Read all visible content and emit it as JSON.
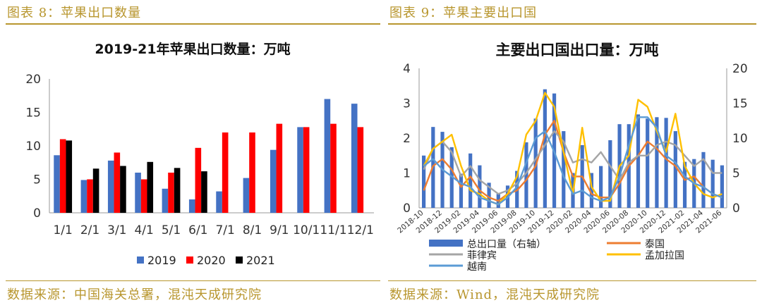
{
  "left": {
    "caption": "图表 8：苹果出口数量",
    "source": "数据来源：中国海关总署，混沌天成研究院",
    "chart_data": {
      "type": "bar",
      "title": "2019-21年苹果出口数量：万吨",
      "categories": [
        "1/1",
        "2/1",
        "3/1",
        "4/1",
        "5/1",
        "6/1",
        "7/1",
        "8/1",
        "9/1",
        "10/1",
        "11/1",
        "12/1"
      ],
      "ylim": [
        0,
        20
      ],
      "yticks": [
        0,
        5,
        10,
        15,
        20
      ],
      "legend_position": "bottom",
      "series": [
        {
          "name": "2019",
          "color": "#4472c4",
          "values": [
            8.6,
            4.9,
            7.8,
            6.0,
            3.6,
            2.0,
            3.2,
            5.2,
            9.4,
            12.8,
            17.0,
            16.3
          ]
        },
        {
          "name": "2020",
          "color": "#ff0000",
          "values": [
            11.0,
            5.0,
            9.0,
            5.0,
            6.0,
            9.7,
            12.0,
            12.0,
            13.3,
            12.8,
            13.3,
            12.8
          ]
        },
        {
          "name": "2021",
          "color": "#000000",
          "values": [
            10.8,
            6.6,
            7.0,
            7.6,
            6.7,
            6.2,
            null,
            null,
            null,
            null,
            null,
            null
          ]
        }
      ]
    }
  },
  "right": {
    "caption": "图表 9：苹果主要出口国",
    "source": "数据来源：Wind，混沌天成研究院",
    "chart_data": {
      "type": "bar+line",
      "title": "主要出口国出口量：万吨",
      "x": [
        "2018-10",
        "2018-11",
        "2018-12",
        "2019-01",
        "2019-02",
        "2019-03",
        "2019-04",
        "2019-05",
        "2019-06",
        "2019-07",
        "2019-08",
        "2019-09",
        "2019-10",
        "2019-11",
        "2019-12",
        "2020-01",
        "2020-02",
        "2020-03",
        "2020-04",
        "2020-05",
        "2020-06",
        "2020-07",
        "2020-08",
        "2020-09",
        "2020-10",
        "2020-11",
        "2020-12",
        "2021-01",
        "2021-02",
        "2021-03",
        "2021-04",
        "2021-05",
        "2021-06"
      ],
      "x_tick_labels": [
        "2018-10",
        "2018-12",
        "2019-02",
        "2019-04",
        "2019-06",
        "2019-08",
        "2019-10",
        "2019-12",
        "2020-02",
        "2020-04",
        "2020-06",
        "2020-08",
        "2020-10",
        "2020-12",
        "2021-02",
        "2021-04",
        "2021-06"
      ],
      "left_ylim": [
        0,
        4
      ],
      "left_yticks": [
        0,
        1,
        2,
        3,
        4
      ],
      "right_ylim": [
        0,
        20
      ],
      "right_yticks": [
        0,
        5,
        10,
        15,
        20
      ],
      "legend_position": "bottom",
      "bar_series": {
        "name": "总出口量（右轴）",
        "color": "#4472c4",
        "values": [
          7.5,
          11.6,
          10.9,
          8.7,
          4.9,
          7.8,
          6.1,
          3.6,
          2.0,
          3.2,
          5.3,
          9.4,
          12.8,
          17.0,
          16.4,
          11.0,
          5.0,
          9.0,
          5.0,
          6.0,
          9.7,
          12.0,
          12.0,
          13.4,
          12.8,
          13.0,
          12.9,
          11.0,
          6.6,
          7.0,
          8.0,
          6.9,
          6.1
        ]
      },
      "line_series": [
        {
          "name": "泰国",
          "color": "#ed7d31",
          "values": [
            0.5,
            1.2,
            1.4,
            1.1,
            0.6,
            0.9,
            0.5,
            0.3,
            0.2,
            0.4,
            0.5,
            0.8,
            1.2,
            2.1,
            2.5,
            1.6,
            0.9,
            0.9,
            0.4,
            0.3,
            0.3,
            0.7,
            1.2,
            1.5,
            1.9,
            1.7,
            1.4,
            1.2,
            0.8,
            0.9,
            0.6,
            0.4,
            0.3
          ]
        },
        {
          "name": "菲律宾",
          "color": "#a5a5a5",
          "values": [
            1.1,
            1.7,
            1.9,
            1.6,
            0.9,
            1.2,
            0.8,
            0.6,
            0.4,
            0.5,
            0.7,
            1.0,
            1.4,
            1.8,
            2.2,
            1.9,
            1.3,
            1.4,
            1.3,
            1.6,
            1.2,
            0.8,
            1.3,
            1.5,
            1.5,
            1.8,
            1.9,
            1.8,
            1.5,
            1.2,
            1.4,
            1.0,
            1.0
          ]
        },
        {
          "name": "孟加拉国",
          "color": "#ffc000",
          "values": [
            1.2,
            1.7,
            1.9,
            2.1,
            1.2,
            0.5,
            0.4,
            0.2,
            0.1,
            0.4,
            0.9,
            2.1,
            2.5,
            3.3,
            2.9,
            1.6,
            0.4,
            2.3,
            0.6,
            0.2,
            0.2,
            1.2,
            1.5,
            3.1,
            2.9,
            2.2,
            1.6,
            2.7,
            1.2,
            0.7,
            0.4,
            0.3,
            0.4
          ]
        },
        {
          "name": "越南",
          "color": "#5b9bd5",
          "values": [
            1.2,
            1.4,
            1.1,
            0.9,
            0.7,
            0.6,
            0.3,
            0.2,
            0.1,
            0.3,
            0.6,
            1.3,
            2.0,
            2.2,
            1.6,
            0.9,
            0.4,
            0.5,
            0.3,
            0.2,
            0.3,
            0.9,
            1.8,
            2.6,
            2.6,
            2.3,
            1.5,
            1.3,
            0.9,
            0.7,
            0.6,
            0.4,
            0.3
          ]
        }
      ]
    }
  }
}
